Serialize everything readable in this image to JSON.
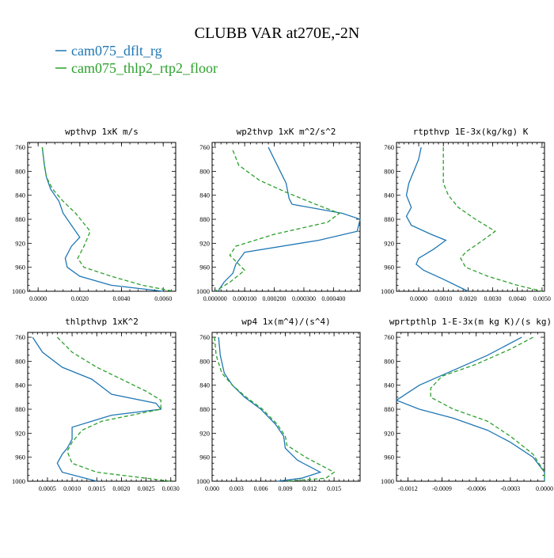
{
  "page": {
    "title": "CLUBB VAR at270E,-2N",
    "legend": [
      {
        "name": "cam075_dflt_rg",
        "color": "#1f77b4"
      },
      {
        "name": "cam075_thlp2_rtp2_floor",
        "color": "#2ca02c"
      }
    ]
  },
  "chart_data": [
    {
      "type": "line",
      "title": "wpthvp  1xK m/s",
      "xlim": [
        -0.0005,
        0.0066
      ],
      "ylim": [
        1000,
        752
      ],
      "yticks": [
        760,
        800,
        840,
        880,
        920,
        960,
        1000
      ],
      "xticks": [
        0.0,
        0.002,
        0.004,
        0.006
      ],
      "xtick_labels": [
        "0.0000",
        "0.0020",
        "0.0040",
        "0.0060"
      ],
      "grid": false,
      "series": [
        {
          "name": "cam075_dflt_rg",
          "points": [
            [
              0.0002,
              760
            ],
            [
              0.0003,
              790
            ],
            [
              0.0004,
              810
            ],
            [
              0.0006,
              830
            ],
            [
              0.001,
              850
            ],
            [
              0.0012,
              870
            ],
            [
              0.0016,
              890
            ],
            [
              0.002,
              910
            ],
            [
              0.0016,
              925
            ],
            [
              0.0013,
              945
            ],
            [
              0.0014,
              960
            ],
            [
              0.002,
              975
            ],
            [
              0.0035,
              990
            ],
            [
              0.006,
              1000
            ]
          ]
        },
        {
          "name": "cam075_thlp2_rtp2_floor",
          "points": [
            [
              0.0002,
              760
            ],
            [
              0.0003,
              790
            ],
            [
              0.0004,
              810
            ],
            [
              0.0007,
              830
            ],
            [
              0.0012,
              850
            ],
            [
              0.0018,
              870
            ],
            [
              0.0025,
              900
            ],
            [
              0.0022,
              925
            ],
            [
              0.0019,
              945
            ],
            [
              0.0022,
              960
            ],
            [
              0.0035,
              975
            ],
            [
              0.005,
              990
            ],
            [
              0.0065,
              1000
            ]
          ]
        }
      ]
    },
    {
      "type": "line",
      "title": "wp2thvp  1xK m^2/s^2",
      "xlim": [
        -1e-05,
        0.00049
      ],
      "ylim": [
        1000,
        752
      ],
      "yticks": [
        760,
        800,
        840,
        880,
        920,
        960,
        1000
      ],
      "xticks": [
        0.0,
        0.0001,
        0.0002,
        0.0003,
        0.0004
      ],
      "xtick_labels": [
        "0.000000",
        "0.000100",
        "0.000200",
        "0.000300",
        "0.000400"
      ],
      "grid": false,
      "series": [
        {
          "name": "cam075_dflt_rg",
          "points": [
            [
              0.00018,
              760
            ],
            [
              0.00021,
              790
            ],
            [
              0.00024,
              820
            ],
            [
              0.00025,
              845
            ],
            [
              0.00026,
              855
            ],
            [
              0.00043,
              870
            ],
            [
              0.00049,
              880
            ],
            [
              0.00048,
              900
            ],
            [
              0.00035,
              915
            ],
            [
              0.0001,
              935
            ],
            [
              7e-05,
              955
            ],
            [
              6e-05,
              970
            ],
            [
              3e-05,
              985
            ],
            [
              1e-05,
              1000
            ]
          ]
        },
        {
          "name": "cam075_thlp2_rtp2_floor",
          "points": [
            [
              6e-05,
              765
            ],
            [
              8e-05,
              790
            ],
            [
              0.00015,
              815
            ],
            [
              0.00024,
              835
            ],
            [
              0.00034,
              855
            ],
            [
              0.00042,
              870
            ],
            [
              0.00038,
              885
            ],
            [
              0.0002,
              905
            ],
            [
              7e-05,
              925
            ],
            [
              5e-05,
              940
            ],
            [
              8e-05,
              955
            ],
            [
              0.0001,
              965
            ],
            [
              5e-05,
              985
            ],
            [
              0.0,
              1000
            ]
          ]
        }
      ]
    },
    {
      "type": "line",
      "title": "rtpthvp  1E-3x(kg/kg) K",
      "xlim": [
        -0.0009,
        0.0051
      ],
      "ylim": [
        1000,
        752
      ],
      "yticks": [
        760,
        800,
        840,
        880,
        920,
        960,
        1000
      ],
      "xticks": [
        0.0,
        0.001,
        0.002,
        0.003,
        0.004,
        0.005
      ],
      "xtick_labels": [
        "0.0000",
        "0.0010",
        "0.0020",
        "0.0030",
        "0.0040",
        "0.0050"
      ],
      "grid": false,
      "series": [
        {
          "name": "cam075_dflt_rg",
          "points": [
            [
              0.0001,
              760
            ],
            [
              0.0,
              780
            ],
            [
              -0.0002,
              800
            ],
            [
              -0.0004,
              820
            ],
            [
              -0.0005,
              840
            ],
            [
              -0.0003,
              860
            ],
            [
              -0.0005,
              875
            ],
            [
              -0.0003,
              890
            ],
            [
              0.0005,
              905
            ],
            [
              0.0011,
              915
            ],
            [
              0.0006,
              930
            ],
            [
              0.0,
              945
            ],
            [
              -0.0001,
              955
            ],
            [
              0.0002,
              965
            ],
            [
              0.001,
              980
            ],
            [
              0.002,
              1000
            ]
          ]
        },
        {
          "name": "cam075_thlp2_rtp2_floor",
          "points": [
            [
              0.001,
              760
            ],
            [
              0.001,
              800
            ],
            [
              0.001,
              820
            ],
            [
              0.0012,
              840
            ],
            [
              0.0016,
              860
            ],
            [
              0.0023,
              880
            ],
            [
              0.0031,
              900
            ],
            [
              0.0026,
              915
            ],
            [
              0.0019,
              935
            ],
            [
              0.0017,
              945
            ],
            [
              0.0019,
              960
            ],
            [
              0.0028,
              975
            ],
            [
              0.004,
              990
            ],
            [
              0.005,
              1000
            ]
          ]
        }
      ]
    },
    {
      "type": "line",
      "title": "thlpthvp  1xK^2",
      "xlim": [
        0.0001,
        0.0031
      ],
      "ylim": [
        1000,
        752
      ],
      "yticks": [
        760,
        800,
        840,
        880,
        920,
        960,
        1000
      ],
      "xticks": [
        0.0005,
        0.001,
        0.0015,
        0.002,
        0.0025,
        0.003
      ],
      "xtick_labels": [
        "0.0005",
        "0.0010",
        "0.0015",
        "0.0020",
        "0.0025",
        "0.0030"
      ],
      "grid": false,
      "series": [
        {
          "name": "cam075_dflt_rg",
          "points": [
            [
              0.0002,
              760
            ],
            [
              0.0004,
              785
            ],
            [
              0.0008,
              810
            ],
            [
              0.0014,
              830
            ],
            [
              0.0018,
              855
            ],
            [
              0.0027,
              870
            ],
            [
              0.0028,
              880
            ],
            [
              0.0018,
              890
            ],
            [
              0.001,
              910
            ],
            [
              0.001,
              930
            ],
            [
              0.0009,
              945
            ],
            [
              0.0008,
              955
            ],
            [
              0.0007,
              970
            ],
            [
              0.0008,
              985
            ],
            [
              0.0015,
              1000
            ]
          ]
        },
        {
          "name": "cam075_thlp2_rtp2_floor",
          "points": [
            [
              0.0007,
              760
            ],
            [
              0.001,
              785
            ],
            [
              0.0015,
              810
            ],
            [
              0.002,
              830
            ],
            [
              0.0025,
              850
            ],
            [
              0.0028,
              865
            ],
            [
              0.0028,
              880
            ],
            [
              0.0022,
              890
            ],
            [
              0.0016,
              900
            ],
            [
              0.0012,
              915
            ],
            [
              0.001,
              935
            ],
            [
              0.0009,
              950
            ],
            [
              0.001,
              970
            ],
            [
              0.0015,
              985
            ],
            [
              0.003,
              1000
            ]
          ]
        }
      ]
    },
    {
      "type": "line",
      "title": "wp4  1x(m^4)/(s^4)",
      "xlim": [
        0.0,
        0.0182
      ],
      "ylim": [
        1000,
        752
      ],
      "yticks": [
        760,
        800,
        840,
        880,
        920,
        960,
        1000
      ],
      "xticks": [
        0.0,
        0.003,
        0.006,
        0.009,
        0.012,
        0.015
      ],
      "xtick_labels": [
        "0.000",
        "0.003",
        "0.006",
        "0.009",
        "0.012",
        "0.015"
      ],
      "grid": false,
      "series": [
        {
          "name": "cam075_dflt_rg",
          "points": [
            [
              0.0008,
              760
            ],
            [
              0.001,
              790
            ],
            [
              0.0015,
              820
            ],
            [
              0.0025,
              840
            ],
            [
              0.004,
              860
            ],
            [
              0.006,
              880
            ],
            [
              0.0078,
              905
            ],
            [
              0.0088,
              925
            ],
            [
              0.009,
              945
            ],
            [
              0.0105,
              965
            ],
            [
              0.0133,
              985
            ],
            [
              0.011,
              995
            ],
            [
              0.008,
              1000
            ]
          ]
        },
        {
          "name": "cam075_thlp2_rtp2_floor",
          "points": [
            [
              0.0003,
              760
            ],
            [
              0.0005,
              790
            ],
            [
              0.0012,
              820
            ],
            [
              0.0025,
              840
            ],
            [
              0.0042,
              860
            ],
            [
              0.0062,
              880
            ],
            [
              0.008,
              905
            ],
            [
              0.009,
              925
            ],
            [
              0.0092,
              940
            ],
            [
              0.0115,
              960
            ],
            [
              0.015,
              985
            ],
            [
              0.014,
              995
            ],
            [
              0.009,
              1000
            ]
          ]
        }
      ]
    },
    {
      "type": "line",
      "title": "wprtpthlp  1-E-3x(m kg K)/(s kg)",
      "xlim": [
        -0.0013,
        0.0
      ],
      "ylim": [
        1000,
        752
      ],
      "yticks": [
        760,
        800,
        840,
        880,
        920,
        960,
        1000
      ],
      "xticks": [
        -0.0012,
        -0.0009,
        -0.0006,
        -0.0003,
        0.0
      ],
      "xtick_labels": [
        "-0.0012",
        "-0.0009",
        "-0.0006",
        "-0.0003",
        "0.0000"
      ],
      "grid": false,
      "series": [
        {
          "name": "cam075_dflt_rg",
          "points": [
            [
              -0.0002,
              760
            ],
            [
              -0.0005,
              790
            ],
            [
              -0.0008,
              815
            ],
            [
              -0.0011,
              840
            ],
            [
              -0.0013,
              865
            ],
            [
              -0.0011,
              880
            ],
            [
              -0.0008,
              895
            ],
            [
              -0.0005,
              915
            ],
            [
              -0.0003,
              935
            ],
            [
              -0.0001,
              960
            ],
            [
              0.0,
              985
            ],
            [
              0.0,
              1000
            ]
          ]
        },
        {
          "name": "cam075_thlp2_rtp2_floor",
          "points": [
            [
              -0.0001,
              760
            ],
            [
              -0.0003,
              780
            ],
            [
              -0.0006,
              805
            ],
            [
              -0.0009,
              825
            ],
            [
              -0.001,
              845
            ],
            [
              -0.001,
              860
            ],
            [
              -0.0008,
              880
            ],
            [
              -0.0005,
              900
            ],
            [
              -0.0003,
              925
            ],
            [
              -0.0001,
              955
            ],
            [
              0.0,
              985
            ],
            [
              0.0,
              1000
            ]
          ]
        }
      ]
    }
  ]
}
